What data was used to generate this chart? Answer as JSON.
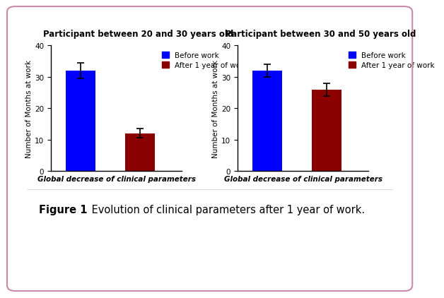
{
  "chart1_title": "Participant between 20 and 30 years old",
  "chart2_title": "Participant between 30 and 50 years old",
  "bar1_values": [
    32,
    12
  ],
  "bar1_errors": [
    2.5,
    1.5
  ],
  "bar2_values": [
    32,
    26
  ],
  "bar2_errors": [
    2.0,
    2.0
  ],
  "bar_colors": [
    "#0000FF",
    "#8B0000"
  ],
  "legend_labels": [
    "Before work",
    "After 1 year of work"
  ],
  "xlabel": "Global decrease of clinical parameters",
  "ylabel": "Number of Months at work",
  "ylim": [
    0,
    40
  ],
  "yticks": [
    0,
    10,
    20,
    30,
    40
  ],
  "bar_width": 0.5,
  "figure_caption_bold": "Figure 1",
  "figure_caption_text": " Evolution of clinical parameters after 1 year of work.",
  "bg_color": "#FFFFFF",
  "border_color": "#CC88AA",
  "title_fontsize": 8.5,
  "axis_fontsize": 7.5,
  "legend_fontsize": 7.5,
  "xlabel_fontsize": 7.5,
  "caption_fontsize": 10.5
}
